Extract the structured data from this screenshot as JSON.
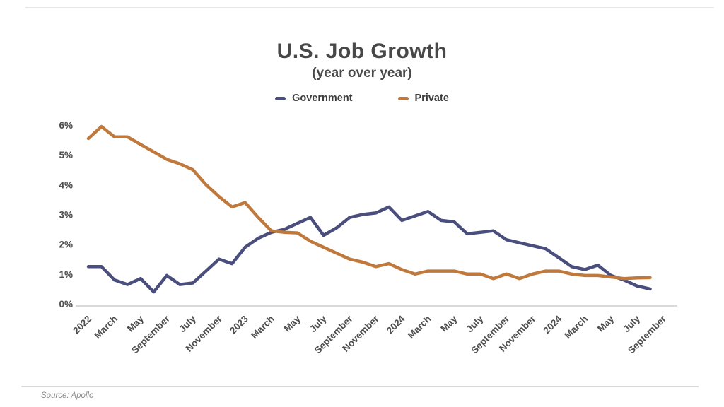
{
  "header": {
    "title": "U.S. Job Growth",
    "subtitle": "(year over year)"
  },
  "legend": [
    {
      "label": "Government",
      "color": "#4A4E7C"
    },
    {
      "label": "Private",
      "color": "#C0793C"
    }
  ],
  "footer": {
    "source": "Source: Apollo"
  },
  "chart_data": {
    "type": "line",
    "title": "U.S. Job Growth",
    "subtitle": "(year over year)",
    "unit": "percent",
    "ylim": [
      0,
      6
    ],
    "y_tick_labels": [
      "0%",
      "1%",
      "2%",
      "3%",
      "4%",
      "5%",
      "6%"
    ],
    "grid": false,
    "legend_position": "top",
    "x_tick_labels": [
      "2022",
      "March",
      "May",
      "September",
      "July",
      "November",
      "2023",
      "March",
      "May",
      "July",
      "September",
      "November",
      "2024",
      "March",
      "May",
      "July",
      "September",
      "November",
      "2024",
      "March",
      "May",
      "July",
      "September"
    ],
    "x_ticks_every_n_points": 2,
    "series": [
      {
        "name": "Government",
        "color": "#4A4E7C",
        "values": [
          1.25,
          1.25,
          0.8,
          0.65,
          0.85,
          0.4,
          0.95,
          0.65,
          0.7,
          1.1,
          1.5,
          1.35,
          1.9,
          2.2,
          2.4,
          2.5,
          2.7,
          2.9,
          2.3,
          2.55,
          2.9,
          3.0,
          3.05,
          3.25,
          2.8,
          2.95,
          3.1,
          2.8,
          2.75,
          2.35,
          2.4,
          2.45,
          2.15,
          2.05,
          1.95,
          1.85,
          1.55,
          1.25,
          1.15,
          1.3,
          0.95,
          0.8,
          0.6,
          0.5
        ]
      },
      {
        "name": "Private",
        "color": "#C0793C",
        "values": [
          5.55,
          5.95,
          5.6,
          5.6,
          5.35,
          5.1,
          4.85,
          4.7,
          4.5,
          4.0,
          3.6,
          3.25,
          3.4,
          2.9,
          2.45,
          2.4,
          2.38,
          2.1,
          1.9,
          1.7,
          1.5,
          1.4,
          1.25,
          1.35,
          1.15,
          1.0,
          1.1,
          1.1,
          1.1,
          1.0,
          1.0,
          0.85,
          1.0,
          0.85,
          1.0,
          1.1,
          1.1,
          1.0,
          0.95,
          0.95,
          0.9,
          0.85,
          0.87,
          0.88
        ]
      }
    ]
  }
}
